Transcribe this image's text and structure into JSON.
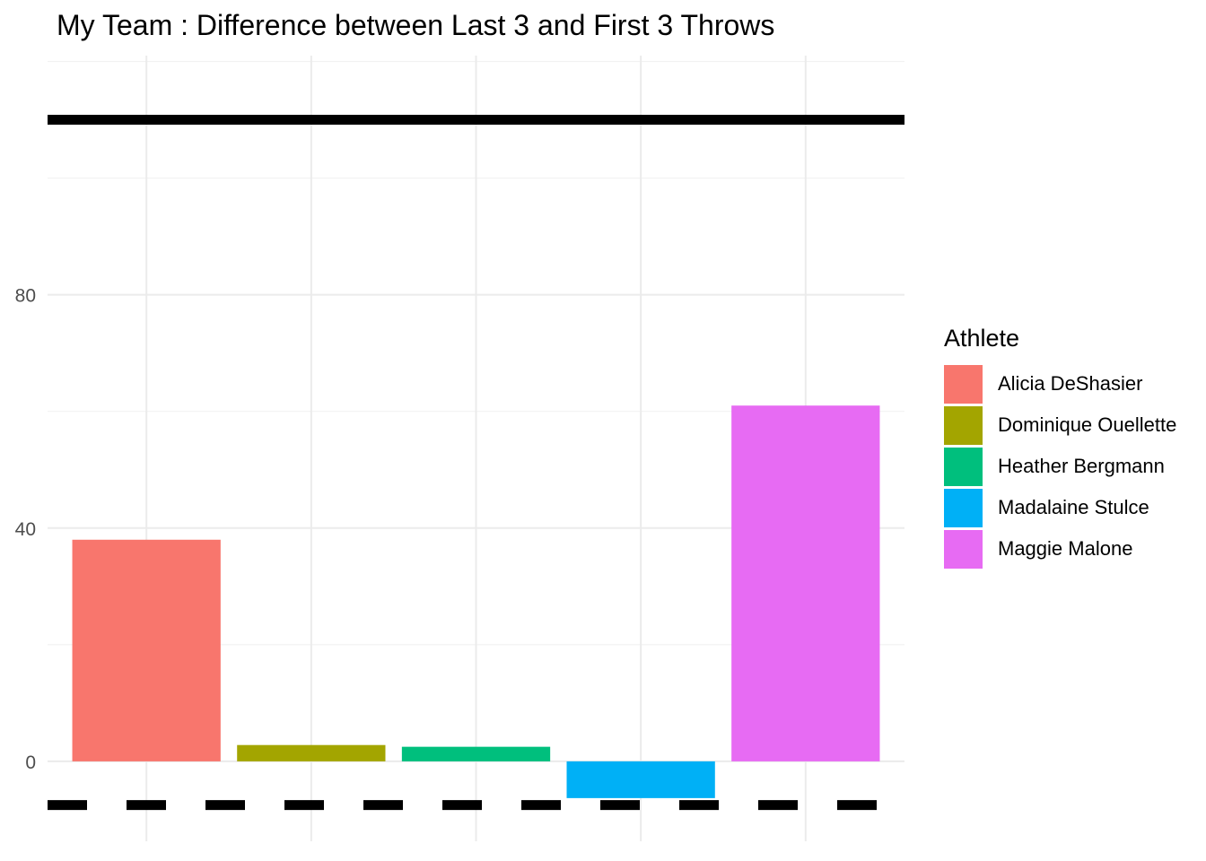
{
  "chart_data": {
    "type": "bar",
    "title": "My Team : Difference between Last 3 and First 3 Throws",
    "xlabel": "",
    "ylabel": "",
    "categories": [
      "Alicia DeShasier",
      "Dominique Ouellette",
      "Heather Bergmann",
      "Madalaine Stulce",
      "Maggie Malone"
    ],
    "values": [
      38,
      2.8,
      2.5,
      -6.3,
      61
    ],
    "colors": [
      "#F8766D",
      "#A3A500",
      "#00BF7D",
      "#00B0F6",
      "#E76BF3"
    ],
    "ylim": [
      -13.7,
      121
    ],
    "yticks": [
      0,
      40,
      80
    ],
    "ytick_labels": [
      "0",
      "40",
      "80"
    ],
    "hlines": [
      {
        "y": 110,
        "style": "solid",
        "color": "#000000"
      },
      {
        "y": -7.5,
        "style": "dashed",
        "color": "#000000"
      }
    ],
    "grid": true,
    "legend": {
      "title": "Athlete",
      "placement": "right"
    }
  }
}
